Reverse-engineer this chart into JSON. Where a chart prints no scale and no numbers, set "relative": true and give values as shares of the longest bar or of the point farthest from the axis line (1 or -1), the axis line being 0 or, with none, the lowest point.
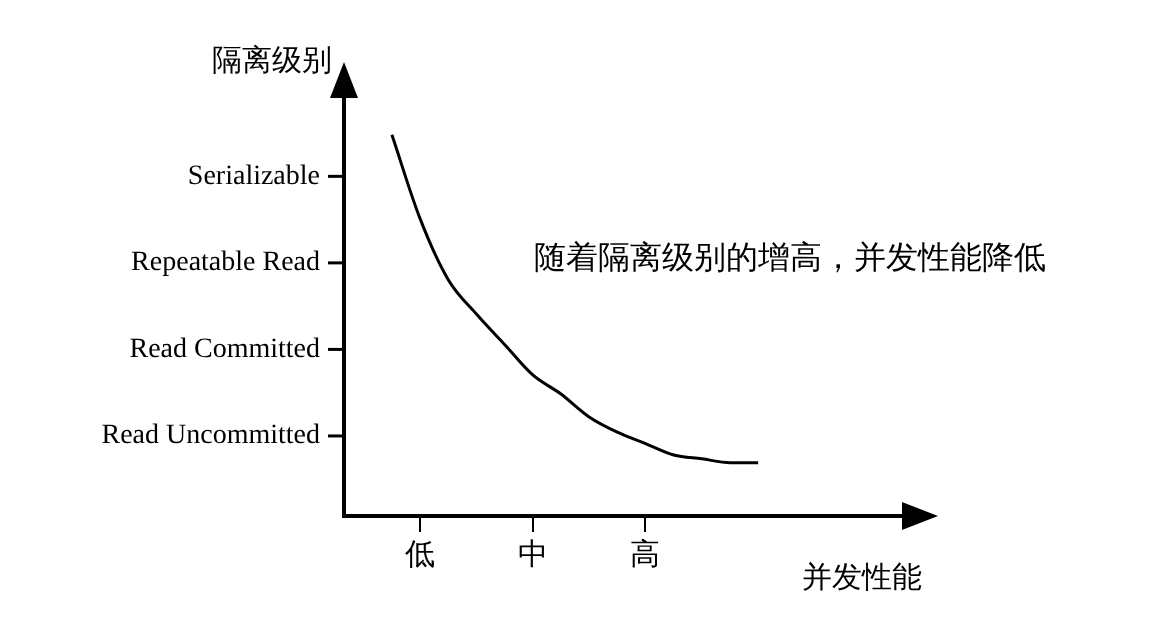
{
  "chart_data": {
    "type": "line",
    "relative": true,
    "xlabel": "并发性能",
    "ylabel": "隔离级别",
    "categories": [
      null,
      "低",
      null,
      null,
      null,
      "中",
      null,
      null,
      null,
      "高",
      null,
      null,
      null,
      null
    ],
    "series": [
      {
        "color": "#000000",
        "values": [
          1.0,
          0.78,
          0.62,
          0.53,
          0.45,
          0.37,
          0.32,
          0.26,
          0.22,
          0.19,
          0.16,
          0.15,
          0.14,
          0.14
        ]
      }
    ],
    "annotations": [
      "Read Uncommitted",
      "Read Committed",
      "Repeatable Read",
      "Serializable",
      "随着隔离级别的增高，并发性能降低"
    ],
    "grid": false,
    "legend": false,
    "marker": "none",
    "line_style": "solid"
  }
}
